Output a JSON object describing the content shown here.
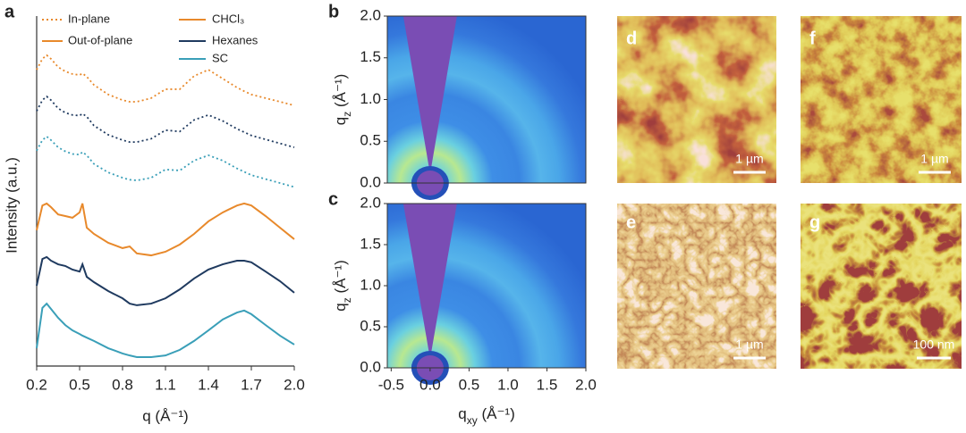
{
  "chart_data": [
    {
      "type": "line",
      "panel": "a",
      "xlabel": "q (Å⁻¹)",
      "ylabel": "Intensity (a.u.)",
      "xlim": [
        0.2,
        2.0
      ],
      "xticks": [
        0.2,
        0.5,
        0.8,
        1.1,
        1.4,
        1.7,
        {
          "value": 2,
          "label": "2.0"
        }
      ],
      "ylim": [
        0,
        10
      ],
      "line_styles": [
        {
          "name": "In-plane",
          "dash": "dotted"
        },
        {
          "name": "Out-of-plane",
          "dash": "solid"
        }
      ],
      "x": [
        0.2,
        0.24,
        0.27,
        0.3,
        0.35,
        0.4,
        0.45,
        0.5,
        0.52,
        0.55,
        0.6,
        0.7,
        0.8,
        0.85,
        0.9,
        1.0,
        1.1,
        1.2,
        1.3,
        1.4,
        1.5,
        1.6,
        1.65,
        1.7,
        1.8,
        1.9,
        2.0
      ],
      "series": [
        {
          "name": "CHCl₃",
          "color": "#e8892b",
          "in_plane": [
            8.97,
            9.3,
            9.41,
            9.3,
            9.05,
            8.92,
            8.84,
            8.81,
            8.86,
            8.76,
            8.51,
            8.22,
            8.05,
            8.0,
            8.0,
            8.11,
            8.38,
            8.38,
            8.78,
            8.97,
            8.7,
            8.43,
            8.32,
            8.22,
            8.11,
            8.0,
            7.89
          ],
          "out_of_plane": [
            4.11,
            4.86,
            4.92,
            4.81,
            4.59,
            4.54,
            4.49,
            4.65,
            4.92,
            4.19,
            4.0,
            3.73,
            3.57,
            3.62,
            3.41,
            3.35,
            3.46,
            3.68,
            4.0,
            4.38,
            4.65,
            4.86,
            4.92,
            4.86,
            4.54,
            4.19,
            3.84
          ]
        },
        {
          "name": "Hexanes",
          "color": "#1f3a5f",
          "in_plane": [
            7.72,
            8.05,
            8.16,
            8.05,
            7.8,
            7.67,
            7.6,
            7.58,
            7.64,
            7.55,
            7.28,
            7.0,
            6.84,
            6.78,
            6.78,
            6.88,
            7.14,
            7.1,
            7.45,
            7.6,
            7.42,
            7.18,
            7.08,
            6.98,
            6.86,
            6.74,
            6.62
          ],
          "out_of_plane": [
            2.43,
            3.24,
            3.3,
            3.19,
            3.08,
            3.03,
            2.92,
            2.86,
            3.08,
            2.7,
            2.54,
            2.27,
            2.05,
            1.89,
            1.84,
            1.89,
            2.05,
            2.32,
            2.65,
            2.92,
            3.08,
            3.19,
            3.19,
            3.14,
            2.86,
            2.57,
            2.22
          ]
        },
        {
          "name": "SC",
          "color": "#3a9fb8",
          "in_plane": [
            6.52,
            6.84,
            6.95,
            6.84,
            6.62,
            6.5,
            6.42,
            6.4,
            6.48,
            6.38,
            6.12,
            5.86,
            5.7,
            5.64,
            5.62,
            5.7,
            5.95,
            5.92,
            6.22,
            6.38,
            6.22,
            5.98,
            5.88,
            5.78,
            5.66,
            5.54,
            5.42
          ],
          "out_of_plane": [
            0.54,
            1.76,
            1.89,
            1.73,
            1.46,
            1.24,
            1.08,
            0.97,
            0.92,
            0.86,
            0.76,
            0.54,
            0.38,
            0.32,
            0.27,
            0.27,
            0.32,
            0.49,
            0.76,
            1.08,
            1.41,
            1.62,
            1.68,
            1.57,
            1.24,
            0.92,
            0.65
          ]
        }
      ]
    },
    {
      "type": "image",
      "panel": "b",
      "ylabel": {
        "symbol": "q",
        "sub": "z",
        "unit": " (Å⁻¹)"
      },
      "xlim": [
        -0.55,
        2.0
      ],
      "ylim": [
        0,
        2.0
      ],
      "yticks": [
        {
          "value": 0,
          "label": "0.0"
        },
        0.5,
        {
          "value": 1,
          "label": "1.0"
        },
        1.5,
        {
          "value": 2,
          "label": "2.0"
        }
      ]
    },
    {
      "type": "image",
      "panel": "c",
      "ylabel": {
        "symbol": "q",
        "sub": "z",
        "unit": " (Å⁻¹)"
      },
      "xlabel": {
        "symbol": "q",
        "sub": "xy",
        "unit": " (Å⁻¹)"
      },
      "xlim": [
        -0.55,
        2.0
      ],
      "ylim": [
        0,
        2.0
      ],
      "xticks": [
        -0.5,
        {
          "value": 0,
          "label": "0.0"
        },
        0.5,
        {
          "value": 1,
          "label": "1.0"
        },
        1.5,
        {
          "value": 2,
          "label": "2.0"
        }
      ],
      "yticks": [
        {
          "value": 0,
          "label": "0.0"
        },
        0.5,
        {
          "value": 1,
          "label": "1.0"
        },
        1.5,
        {
          "value": 2,
          "label": "2.0"
        }
      ]
    },
    {
      "type": "micrograph",
      "panel": "d",
      "scale_bar": "1 µm"
    },
    {
      "type": "micrograph",
      "panel": "e",
      "scale_bar": "1 µm"
    },
    {
      "type": "micrograph",
      "panel": "f",
      "scale_bar": "1 µm"
    },
    {
      "type": "micrograph",
      "panel": "g",
      "scale_bar": "100 nm"
    }
  ]
}
